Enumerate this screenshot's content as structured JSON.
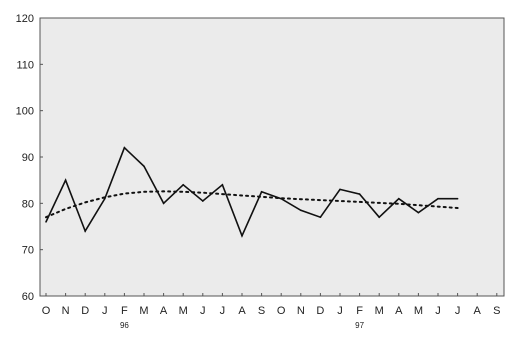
{
  "chart_data": {
    "type": "line",
    "ylim": [
      60,
      120
    ],
    "y_ticks": [
      "60",
      "70",
      "80",
      "90",
      "100",
      "110",
      "120"
    ],
    "x_ticks": [
      "O",
      "N",
      "D",
      "J",
      "F",
      "M",
      "A",
      "M",
      "J",
      "J",
      "A",
      "S",
      "O",
      "N",
      "D",
      "J",
      "F",
      "M",
      "A",
      "M",
      "J",
      "J",
      "A",
      "S"
    ],
    "year_labels": [
      {
        "text": "96",
        "at_index": 4
      },
      {
        "text": "97",
        "at_index": 16
      }
    ],
    "grid": false,
    "series": [
      {
        "style": "solid",
        "color": "#111111",
        "values": [
          76,
          85,
          74,
          81,
          92,
          88,
          80,
          84,
          80.5,
          84,
          73,
          82.5,
          81,
          78.5,
          77,
          83,
          82,
          77,
          81,
          78,
          81,
          81
        ]
      },
      {
        "style": "dotted",
        "color": "#111111",
        "values": [
          77,
          78.8,
          80.2,
          81.3,
          82.1,
          82.5,
          82.6,
          82.5,
          82.3,
          82.0,
          81.7,
          81.4,
          81.1,
          80.9,
          80.7,
          80.5,
          80.3,
          80.1,
          79.9,
          79.6,
          79.3,
          79.0
        ]
      }
    ]
  }
}
